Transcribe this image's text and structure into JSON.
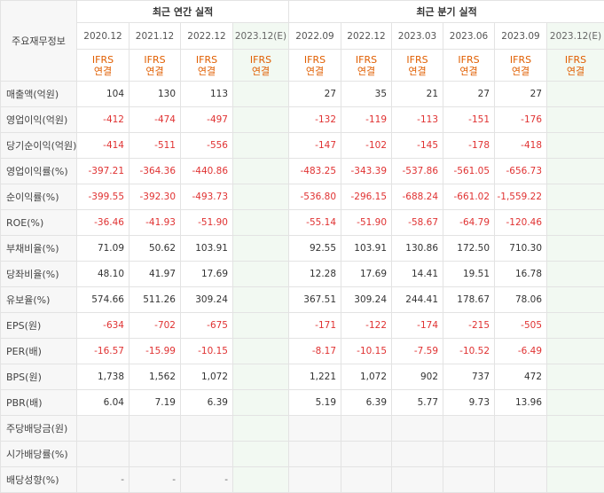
{
  "header": {
    "corner_label": "주요재무정보",
    "annual_group": "최근 연간 실적",
    "quarter_group": "최근 분기 실적",
    "annual_periods": [
      "2020.12",
      "2021.12",
      "2022.12",
      "2023.12(E)"
    ],
    "quarter_periods": [
      "2022.09",
      "2022.12",
      "2023.03",
      "2023.06",
      "2023.09",
      "2023.12(E)"
    ],
    "basis_line1": "IFRS",
    "basis_line2": "연결"
  },
  "rows": [
    {
      "label": "매출액(억원)",
      "annual": [
        "104",
        "130",
        "113",
        ""
      ],
      "quarter": [
        "27",
        "35",
        "21",
        "27",
        "27",
        ""
      ]
    },
    {
      "label": "영업이익(억원)",
      "annual": [
        "-412",
        "-474",
        "-497",
        ""
      ],
      "quarter": [
        "-132",
        "-119",
        "-113",
        "-151",
        "-176",
        ""
      ]
    },
    {
      "label": "당기순이익(억원)",
      "annual": [
        "-414",
        "-511",
        "-556",
        ""
      ],
      "quarter": [
        "-147",
        "-102",
        "-145",
        "-178",
        "-418",
        ""
      ]
    },
    {
      "label": "영업이익률(%)",
      "annual": [
        "-397.21",
        "-364.36",
        "-440.86",
        ""
      ],
      "quarter": [
        "-483.25",
        "-343.39",
        "-537.86",
        "-561.05",
        "-656.73",
        ""
      ]
    },
    {
      "label": "순이익률(%)",
      "annual": [
        "-399.55",
        "-392.30",
        "-493.73",
        ""
      ],
      "quarter": [
        "-536.80",
        "-296.15",
        "-688.24",
        "-661.02",
        "-1,559.22",
        ""
      ]
    },
    {
      "label": "ROE(%)",
      "annual": [
        "-36.46",
        "-41.93",
        "-51.90",
        ""
      ],
      "quarter": [
        "-55.14",
        "-51.90",
        "-58.67",
        "-64.79",
        "-120.46",
        ""
      ]
    },
    {
      "label": "부채비율(%)",
      "annual": [
        "71.09",
        "50.62",
        "103.91",
        ""
      ],
      "quarter": [
        "92.55",
        "103.91",
        "130.86",
        "172.50",
        "710.30",
        ""
      ]
    },
    {
      "label": "당좌비율(%)",
      "annual": [
        "48.10",
        "41.97",
        "17.69",
        ""
      ],
      "quarter": [
        "12.28",
        "17.69",
        "14.41",
        "19.51",
        "16.78",
        ""
      ]
    },
    {
      "label": "유보율(%)",
      "annual": [
        "574.66",
        "511.26",
        "309.24",
        ""
      ],
      "quarter": [
        "367.51",
        "309.24",
        "244.41",
        "178.67",
        "78.06",
        ""
      ]
    },
    {
      "label": "EPS(원)",
      "annual": [
        "-634",
        "-702",
        "-675",
        ""
      ],
      "quarter": [
        "-171",
        "-122",
        "-174",
        "-215",
        "-505",
        ""
      ]
    },
    {
      "label": "PER(배)",
      "annual": [
        "-16.57",
        "-15.99",
        "-10.15",
        ""
      ],
      "quarter": [
        "-8.17",
        "-10.15",
        "-7.59",
        "-10.52",
        "-6.49",
        ""
      ]
    },
    {
      "label": "BPS(원)",
      "annual": [
        "1,738",
        "1,562",
        "1,072",
        ""
      ],
      "quarter": [
        "1,221",
        "1,072",
        "902",
        "737",
        "472",
        ""
      ]
    },
    {
      "label": "PBR(배)",
      "annual": [
        "6.04",
        "7.19",
        "6.39",
        ""
      ],
      "quarter": [
        "5.19",
        "6.39",
        "5.77",
        "9.73",
        "13.96",
        ""
      ]
    },
    {
      "label": "주당배당금(원)",
      "annual": [
        "",
        "",
        "",
        ""
      ],
      "quarter": [
        "",
        "",
        "",
        "",
        "",
        ""
      ]
    },
    {
      "label": "시가배당률(%)",
      "annual": [
        "",
        "",
        "",
        ""
      ],
      "quarter": [
        "",
        "",
        "",
        "",
        "",
        ""
      ]
    },
    {
      "label": "배당성향(%)",
      "annual": [
        "-",
        "-",
        "-",
        ""
      ],
      "quarter": [
        "",
        "",
        "",
        "",
        "",
        ""
      ]
    }
  ],
  "colors": {
    "negative": "#e03232",
    "basis": "#e05e00",
    "estimate_bg": "#f2f9f2",
    "label_bg": "#f7f7f7"
  }
}
